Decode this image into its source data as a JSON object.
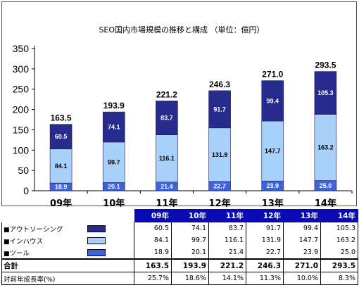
{
  "chart_data": {
    "type": "bar",
    "stacked": true,
    "title": "SEO国内市場規模の推移と構成 （単位：億円）",
    "categories": [
      "09年",
      "10年",
      "11年",
      "12年",
      "13年",
      "14年"
    ],
    "series": [
      {
        "name": "ツール",
        "color": "#3e63dc",
        "values": [
          18.9,
          20.1,
          21.4,
          22.7,
          23.9,
          25.0
        ]
      },
      {
        "name": "インハウス",
        "color": "#a8d0f8",
        "values": [
          84.1,
          99.7,
          116.1,
          131.9,
          147.7,
          163.2
        ]
      },
      {
        "name": "アウトソーシング",
        "color": "#272b8e",
        "values": [
          60.5,
          74.1,
          83.7,
          91.7,
          99.4,
          105.3
        ]
      }
    ],
    "segment_labels": [
      [
        "18.9",
        "20.1",
        "21.4",
        "22.7",
        "23.9",
        "25.0"
      ],
      [
        "84.1",
        "99.7",
        "116.1",
        "131.9",
        "147.7",
        "163.2"
      ],
      [
        "60.5",
        "74.1",
        "83.7",
        "91.7",
        "99.4",
        "105.3"
      ]
    ],
    "totals": [
      163.5,
      193.9,
      221.2,
      246.3,
      271.0,
      293.5
    ],
    "total_labels": [
      "163.5",
      "193.9",
      "221.2",
      "246.3",
      "271.0",
      "293.5"
    ],
    "yticks": [
      "0",
      "50",
      "100",
      "150",
      "200",
      "250",
      "300",
      "350"
    ],
    "ylim": [
      0,
      350
    ],
    "grid": false,
    "legend": "none"
  },
  "table": {
    "header": [
      "09年",
      "10年",
      "11年",
      "12年",
      "13年",
      "14年"
    ],
    "rows": [
      {
        "bullet": "■",
        "label": "アウトソーシング",
        "color": "#272b8e",
        "values": [
          "60.5",
          "74.1",
          "83.7",
          "91.7",
          "99.4",
          "105.3"
        ]
      },
      {
        "bullet": "■",
        "label": "インハウス",
        "color": "#a8d0f8",
        "values": [
          "84.1",
          "99.7",
          "116.1",
          "131.9",
          "147.7",
          "163.2"
        ]
      },
      {
        "bullet": "■",
        "label": "ツール",
        "color": "#3e63dc",
        "values": [
          "18.9",
          "20.1",
          "21.4",
          "22.7",
          "23.9",
          "25.0"
        ]
      }
    ],
    "total": {
      "label": "合計",
      "values": [
        "163.5",
        "193.9",
        "221.2",
        "246.3",
        "271.0",
        "293.5"
      ]
    },
    "growth": {
      "label": "対前年成長率(%)",
      "values": [
        "25.7%",
        "18.6%",
        "14.1%",
        "11.3%",
        "10.0%",
        "8.3%"
      ]
    }
  }
}
